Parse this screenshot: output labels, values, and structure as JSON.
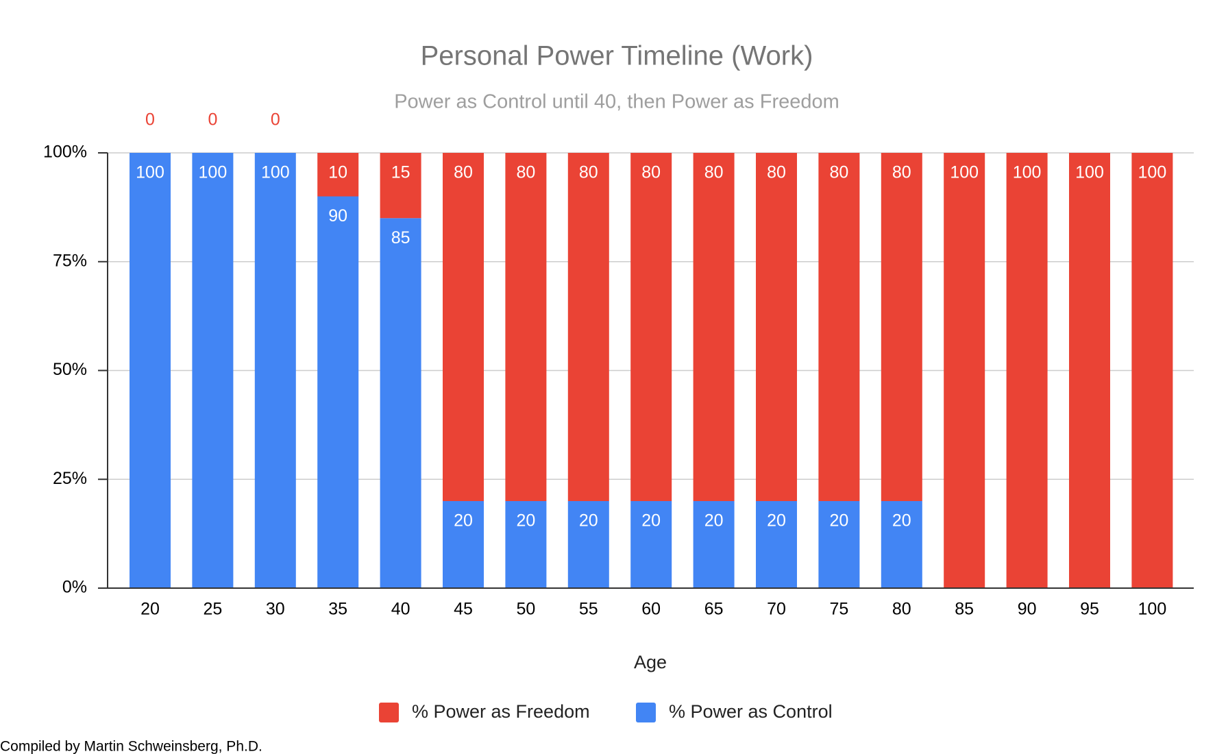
{
  "chart_data": {
    "type": "stacked_bar",
    "title": "Personal Power Timeline (Work)",
    "subtitle": "Power as Control until 40, then Power as Freedom",
    "x_label": "Age",
    "categories": [
      "20",
      "25",
      "30",
      "35",
      "40",
      "45",
      "50",
      "55",
      "60",
      "65",
      "70",
      "75",
      "80",
      "85",
      "90",
      "95",
      "100"
    ],
    "series": [
      {
        "name": "% Power as Control",
        "color": "#4285f4",
        "values": [
          100,
          100,
          100,
          90,
          85,
          20,
          20,
          20,
          20,
          20,
          20,
          20,
          20,
          0,
          0,
          0,
          0
        ]
      },
      {
        "name": "% Power as Freedom",
        "color": "#ea4335",
        "values": [
          0,
          0,
          0,
          10,
          15,
          80,
          80,
          80,
          80,
          80,
          80,
          80,
          80,
          100,
          100,
          100,
          100
        ]
      }
    ],
    "ylim": [
      0,
      100
    ],
    "yticks": [
      {
        "value": 0,
        "label": "0%"
      },
      {
        "value": 25,
        "label": "25%"
      },
      {
        "value": 50,
        "label": "50%"
      },
      {
        "value": 75,
        "label": "75%"
      },
      {
        "value": 100,
        "label": "100%"
      }
    ],
    "grid": true,
    "legend": "bottom"
  },
  "footer": "Compiled by Martin Schweinsberg, Ph.D."
}
